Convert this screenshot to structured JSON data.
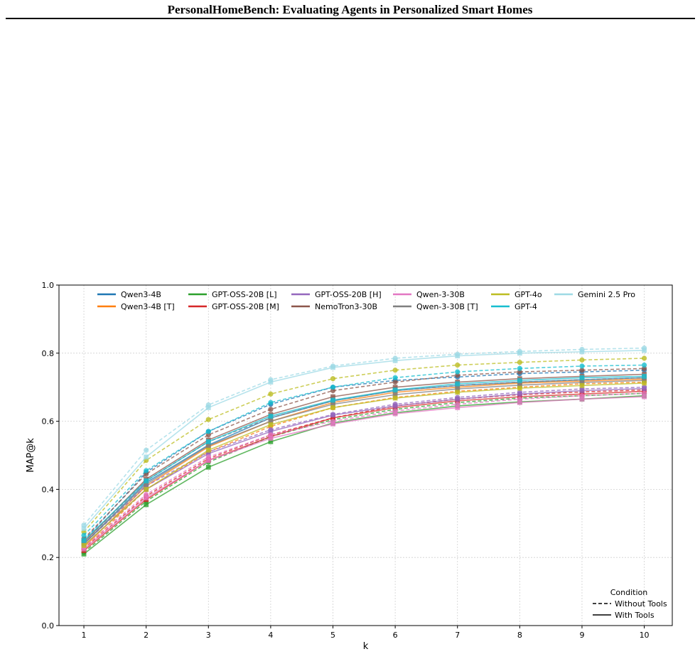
{
  "page": {
    "header_title": "PersonalHomeBench: Evaluating Agents in Personalized Smart Homes"
  },
  "chart_data": {
    "type": "line",
    "title": "",
    "xlabel": "k",
    "ylabel": "MAP@k",
    "x": [
      1,
      2,
      3,
      4,
      5,
      6,
      7,
      8,
      9,
      10
    ],
    "xlim": [
      0.6,
      10.45
    ],
    "ylim": [
      0.0,
      1.0
    ],
    "yticks": [
      "0.0",
      "0.2",
      "0.4",
      "0.6",
      "0.8",
      "1.0"
    ],
    "xticks": [
      "1",
      "2",
      "3",
      "4",
      "5",
      "6",
      "7",
      "8",
      "9",
      "10"
    ],
    "grid": true,
    "legend_placement": "top",
    "condition_legend": {
      "title": "Condition",
      "placement": "bottom-right",
      "entries": [
        {
          "label": "Without Tools",
          "style": "dashed"
        },
        {
          "label": "With Tools",
          "style": "solid"
        }
      ]
    },
    "series": [
      {
        "name": "Qwen3-4B",
        "color": "#1f77b4",
        "without_tools": [
          0.25,
          0.45,
          0.57,
          0.65,
          0.7,
          0.72,
          0.73,
          0.74,
          0.745,
          0.75
        ],
        "with_tools": [
          0.24,
          0.42,
          0.53,
          0.61,
          0.66,
          0.69,
          0.705,
          0.715,
          0.722,
          0.728
        ]
      },
      {
        "name": "Qwen3-4B [T]",
        "color": "#ff7f0e",
        "without_tools": [
          0.225,
          0.4,
          0.51,
          0.585,
          0.64,
          0.67,
          0.688,
          0.7,
          0.71,
          0.715
        ],
        "with_tools": [
          0.23,
          0.41,
          0.525,
          0.6,
          0.655,
          0.685,
          0.7,
          0.712,
          0.718,
          0.724
        ]
      },
      {
        "name": "GPT-OSS-20B [L]",
        "color": "#2ca02c",
        "without_tools": [
          0.215,
          0.365,
          0.48,
          0.555,
          0.605,
          0.635,
          0.655,
          0.668,
          0.675,
          0.682
        ],
        "with_tools": [
          0.21,
          0.355,
          0.465,
          0.54,
          0.595,
          0.625,
          0.645,
          0.657,
          0.665,
          0.675
        ]
      },
      {
        "name": "GPT-OSS-20B [M]",
        "color": "#d62728",
        "without_tools": [
          0.225,
          0.38,
          0.49,
          0.56,
          0.61,
          0.645,
          0.665,
          0.678,
          0.686,
          0.692
        ],
        "with_tools": [
          0.22,
          0.37,
          0.485,
          0.555,
          0.61,
          0.64,
          0.66,
          0.672,
          0.68,
          0.688
        ]
      },
      {
        "name": "GPT-OSS-20B [H]",
        "color": "#9467bd",
        "without_tools": [
          0.24,
          0.41,
          0.51,
          0.575,
          0.62,
          0.65,
          0.67,
          0.685,
          0.695,
          0.7
        ],
        "with_tools": [
          0.235,
          0.4,
          0.505,
          0.57,
          0.618,
          0.645,
          0.665,
          0.68,
          0.69,
          0.696
        ]
      },
      {
        "name": "NemoTron3-30B",
        "color": "#8c564b",
        "without_tools": [
          0.255,
          0.445,
          0.56,
          0.635,
          0.69,
          0.715,
          0.735,
          0.745,
          0.75,
          0.755
        ],
        "with_tools": [
          0.245,
          0.43,
          0.545,
          0.62,
          0.672,
          0.7,
          0.715,
          0.725,
          0.732,
          0.738
        ]
      },
      {
        "name": "Qwen-3-30B",
        "color": "#e377c2",
        "without_tools": [
          0.23,
          0.385,
          0.495,
          0.56,
          0.6,
          0.63,
          0.65,
          0.665,
          0.675,
          0.682
        ],
        "with_tools": [
          0.225,
          0.375,
          0.485,
          0.55,
          0.592,
          0.622,
          0.64,
          0.655,
          0.665,
          0.672
        ]
      },
      {
        "name": "Qwen-3-30B [T]",
        "color": "#7f7f7f",
        "without_tools": [
          0.245,
          0.425,
          0.54,
          0.61,
          0.66,
          0.69,
          0.705,
          0.715,
          0.722,
          0.728
        ],
        "with_tools": [
          0.24,
          0.415,
          0.528,
          0.6,
          0.65,
          0.678,
          0.695,
          0.706,
          0.714,
          0.72
        ]
      },
      {
        "name": "GPT-4o",
        "color": "#bcbd22",
        "without_tools": [
          0.275,
          0.485,
          0.605,
          0.68,
          0.725,
          0.75,
          0.765,
          0.773,
          0.78,
          0.785
        ],
        "with_tools": [
          0.235,
          0.4,
          0.515,
          0.59,
          0.64,
          0.668,
          0.685,
          0.697,
          0.705,
          0.712
        ]
      },
      {
        "name": "GPT-4",
        "color": "#17becf",
        "without_tools": [
          0.265,
          0.455,
          0.57,
          0.655,
          0.7,
          0.728,
          0.745,
          0.755,
          0.762,
          0.765
        ],
        "with_tools": [
          0.25,
          0.425,
          0.54,
          0.615,
          0.662,
          0.692,
          0.71,
          0.72,
          0.728,
          0.732
        ]
      },
      {
        "name": "Gemini 2.5 Pro",
        "color": "#9edae5",
        "without_tools": [
          0.295,
          0.515,
          0.648,
          0.722,
          0.762,
          0.785,
          0.797,
          0.805,
          0.811,
          0.815
        ],
        "with_tools": [
          0.285,
          0.495,
          0.64,
          0.715,
          0.758,
          0.778,
          0.792,
          0.8,
          0.804,
          0.808
        ]
      }
    ]
  }
}
